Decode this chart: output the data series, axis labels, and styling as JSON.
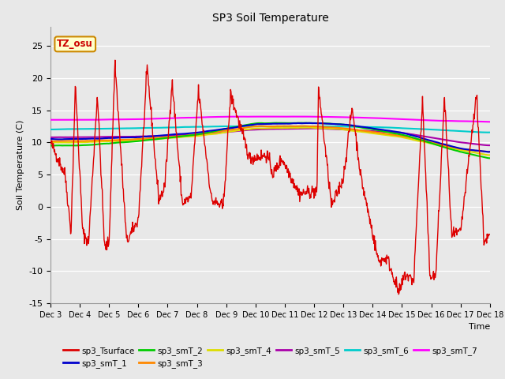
{
  "title": "SP3 Soil Temperature",
  "xlabel": "Time",
  "ylabel": "Soil Temperature (C)",
  "ylim": [
    -15,
    28
  ],
  "yticks": [
    -15,
    -10,
    -5,
    0,
    5,
    10,
    15,
    20,
    25
  ],
  "background_color": "#e8e8e8",
  "plot_bg_color": "#e8e8e8",
  "tz_label": "TZ_osu",
  "legend": {
    "sp3_Tsurface": "#dd0000",
    "sp3_smT_1": "#0000cc",
    "sp3_smT_2": "#00cc00",
    "sp3_smT_3": "#ff8800",
    "sp3_smT_4": "#dddd00",
    "sp3_smT_5": "#aa00aa",
    "sp3_smT_6": "#00cccc",
    "sp3_smT_7": "#ff00ff"
  },
  "x_tick_labels": [
    "Dec 3",
    "Dec 4",
    "Dec 5",
    "Dec 6",
    "Dec 7",
    "Dec 8",
    "Dec 9",
    "Dec 10",
    "Dec 11",
    "Dec 12",
    "Dec 13",
    "Dec 14",
    "Dec 15",
    "Dec 16",
    "Dec 17",
    "Dec 18"
  ],
  "n_points": 960
}
